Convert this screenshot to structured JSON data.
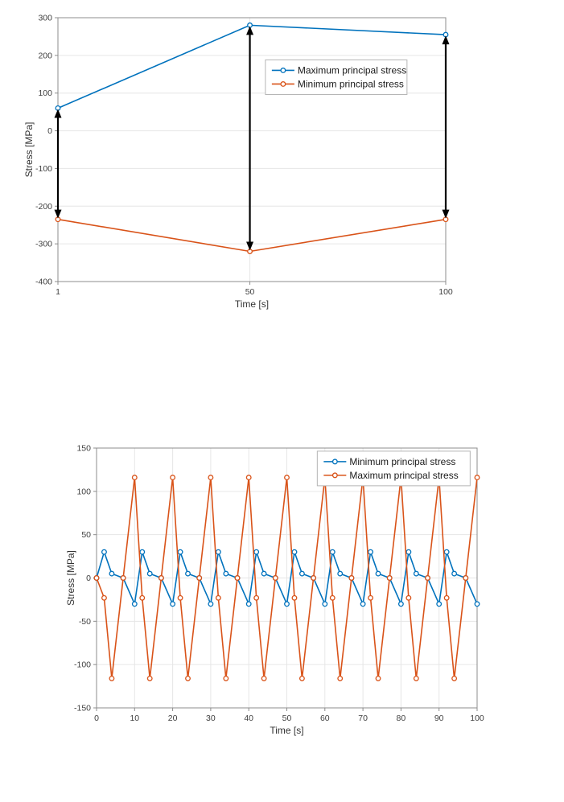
{
  "colors": {
    "blue": "#0072BD",
    "orange": "#D95319",
    "grid": "#e6e6e6",
    "axis": "#8c8c8c",
    "arrow": "#000000",
    "legend_border": "#b5b5b5",
    "background": "#ffffff"
  },
  "chart_data": [
    {
      "type": "line",
      "title": "",
      "xlabel": "Time [s]",
      "ylabel": "Stress [MPa]",
      "xlim": [
        1,
        100
      ],
      "ylim": [
        -400,
        300
      ],
      "xticks": [
        1,
        50,
        100
      ],
      "yticks": [
        -400,
        -300,
        -200,
        -100,
        0,
        100,
        200,
        300
      ],
      "grid": true,
      "legend_position": "inside-upper-middle",
      "series": [
        {
          "name": "Maximum principal stress",
          "color_key": "blue",
          "x": [
            1,
            50,
            100
          ],
          "y": [
            60,
            280,
            255
          ]
        },
        {
          "name": "Minimum principal stress",
          "color_key": "orange",
          "x": [
            1,
            50,
            100
          ],
          "y": [
            -235,
            -320,
            -235
          ]
        }
      ],
      "annotations": {
        "description": "vertical double-headed black arrows between the two curves",
        "arrows_x": [
          1,
          50,
          100
        ]
      }
    },
    {
      "type": "line",
      "title": "",
      "xlabel": "Time [s]",
      "ylabel": "Stress [MPa]",
      "xlim": [
        0,
        100
      ],
      "ylim": [
        -150,
        150
      ],
      "xticks": [
        0,
        10,
        20,
        30,
        40,
        50,
        60,
        70,
        80,
        90,
        100
      ],
      "yticks": [
        -150,
        -100,
        -50,
        0,
        50,
        100,
        150
      ],
      "grid": true,
      "legend_position": "inside-upper-right",
      "series": [
        {
          "name": "Minimum principal stress",
          "color_key": "blue",
          "x": [
            0,
            2,
            4,
            7,
            10,
            12,
            14,
            17,
            20,
            22,
            24,
            27,
            30,
            32,
            34,
            37,
            40,
            42,
            44,
            47,
            50,
            52,
            54,
            57,
            60,
            62,
            64,
            67,
            70,
            72,
            74,
            77,
            80,
            82,
            84,
            87,
            90,
            92,
            94,
            97,
            100
          ],
          "y": [
            0,
            30,
            5,
            0,
            -30,
            30,
            5,
            0,
            -30,
            30,
            5,
            0,
            -30,
            30,
            5,
            0,
            -30,
            30,
            5,
            0,
            -30,
            30,
            5,
            0,
            -30,
            30,
            5,
            0,
            -30,
            30,
            5,
            0,
            -30,
            30,
            5,
            0,
            -30,
            30,
            5,
            0,
            -30
          ]
        },
        {
          "name": "Maximum principal stress",
          "color_key": "orange",
          "x": [
            0,
            2,
            4,
            7,
            10,
            12,
            14,
            17,
            20,
            22,
            24,
            27,
            30,
            32,
            34,
            37,
            40,
            42,
            44,
            47,
            50,
            52,
            54,
            57,
            60,
            62,
            64,
            67,
            70,
            72,
            74,
            77,
            80,
            82,
            84,
            87,
            90,
            92,
            94,
            97,
            100
          ],
          "y": [
            0,
            -23,
            -116,
            0,
            116,
            -23,
            -116,
            0,
            116,
            -23,
            -116,
            0,
            116,
            -23,
            -116,
            0,
            116,
            -23,
            -116,
            0,
            116,
            -23,
            -116,
            0,
            116,
            -23,
            -116,
            0,
            116,
            -23,
            -116,
            0,
            116,
            -23,
            -116,
            0,
            116,
            -23,
            -116,
            0,
            116
          ]
        }
      ],
      "annotations": {
        "arrows_x": []
      }
    }
  ]
}
